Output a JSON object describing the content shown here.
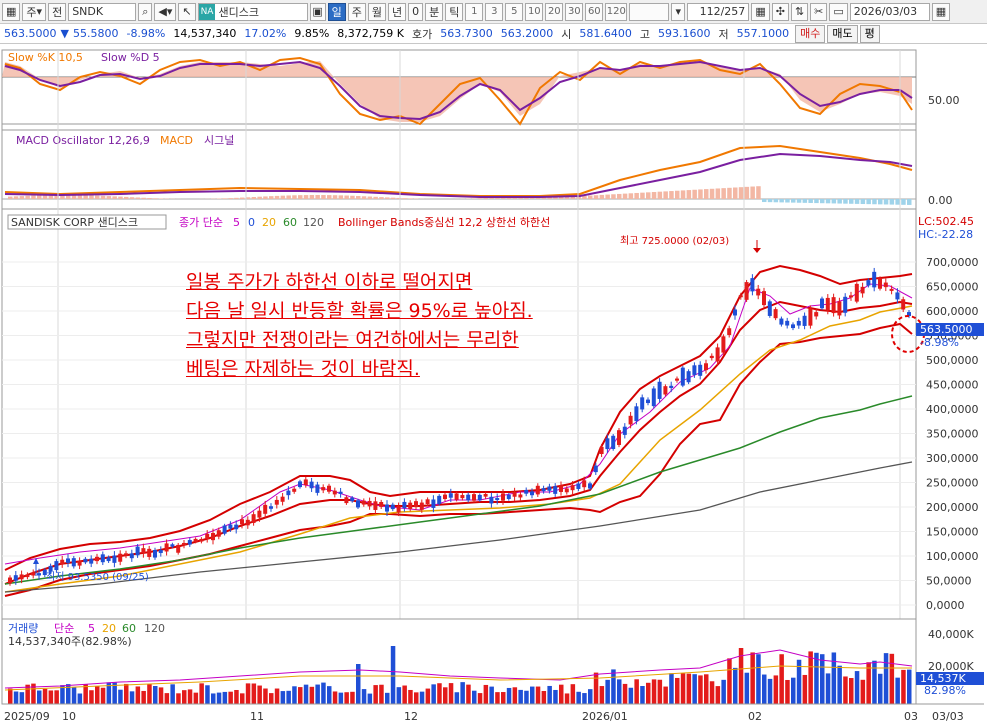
{
  "toolbar": {
    "period_type": "주",
    "prev_label": "전",
    "symbol": "SNDK",
    "na_badge": "NA",
    "stock_name": "샌디스크",
    "timeframes": [
      "일",
      "주",
      "월",
      "년",
      "0",
      "분",
      "틱"
    ],
    "selected_timeframe": "일",
    "intervals": [
      "1",
      "3",
      "5",
      "10",
      "20",
      "30",
      "60",
      "120"
    ],
    "page_counter": "112/257",
    "date": "2026/03/03"
  },
  "quote": {
    "price": "563.5000",
    "change": "55.5800",
    "change_pct": "-8.98%",
    "volume": "14,537,340",
    "vol_pct": "17.02%",
    "ratio": "9.85%",
    "amount": "8,372,759 K",
    "bid_label": "호가",
    "bid": "563.7300",
    "ask": "563.2000",
    "open_label": "시",
    "open": "581.6400",
    "high_label": "고",
    "high": "593.1600",
    "low_label": "저",
    "low": "557.1000",
    "buy_label": "매수",
    "sell_label": "매도",
    "flat_label": "평"
  },
  "panels": {
    "slow": {
      "title_k": "Slow %K 10,5",
      "title_d": "Slow %D 5",
      "axis_label": "50.00"
    },
    "macd": {
      "title_osc": "MACD Oscillator 12,26,9",
      "title_macd": "MACD",
      "title_sig": "시그널",
      "axis_label": "0.00"
    },
    "main": {
      "stock_tag": "SANDISK CORP 샌디스크",
      "ma_label": "종가 단순",
      "ma_periods": [
        "5",
        "0",
        "20",
        "60",
        "120"
      ],
      "bb_label": "Bollinger Bands중심선 12,2 상한선 하한선",
      "lc_label": "LC:502.45",
      "hc_label": "HC:-22.28",
      "high_annot": "최고 725.0000 (02/03)",
      "low_annot": "최저 93.5350 (09/25)",
      "price_tag": "563.5000",
      "price_tag_pct": "-8.98%"
    },
    "volume": {
      "title": "거래량",
      "ma_label": "단순",
      "ma_periods": [
        "5",
        "20",
        "60",
        "120"
      ],
      "subtitle": "14,537,340주(82.98%)",
      "vol_tag": "14,537K",
      "vol_tag_pct": "82.98%"
    }
  },
  "price_axis": [
    "700,0000",
    "650,0000",
    "600,0000",
    "550,0000",
    "500,0000",
    "450,0000",
    "400,0000",
    "350,0000",
    "300,0000",
    "250,0000",
    "200,0000",
    "150,0000",
    "100,0000",
    "50,0000",
    "0,0000"
  ],
  "volume_axis": [
    "40,000K",
    "20,000K"
  ],
  "x_axis": [
    "2025/09",
    "10",
    "11",
    "12",
    "2026/01",
    "02",
    "03",
    "03/03"
  ],
  "annotation_lines": [
    "일봉 주가가 하한선 이하로 떨어지면",
    "다음 날 일시 반등할 확률은 95%로 높아짐.",
    "그렇지만 전쟁이라는 여건하에서는 무리한",
    "베팅은 자제하는 것이 바람직."
  ],
  "colors": {
    "up": "#e31b1b",
    "down": "#1f4fd6",
    "bb": "#d40000",
    "ma5": "#c400c4",
    "ma20": "#e8a400",
    "ma60": "#2a8a2a",
    "ma120": "#555555",
    "slowk": "#f07800",
    "slowd": "#7a1fa0"
  }
}
